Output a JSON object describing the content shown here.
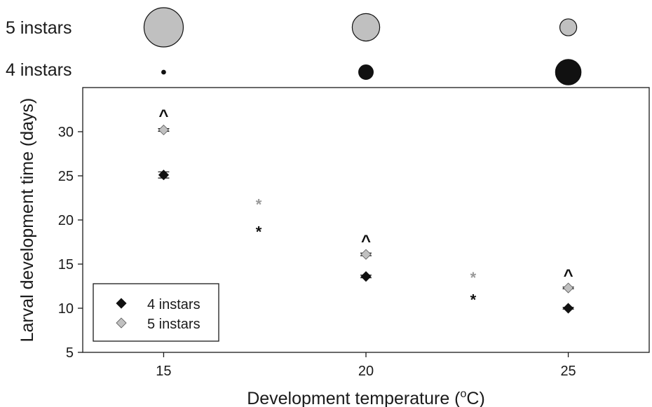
{
  "chart_data": {
    "type": "scatter",
    "title": "",
    "xlabel": "Development temperature (",
    "xlabel_sup": "o",
    "xlabel_suffix": "C)",
    "ylabel": "Larval development time (days)",
    "xlim": [
      13,
      27
    ],
    "ylim": [
      5,
      35
    ],
    "xticks": [
      15,
      20,
      25
    ],
    "yticks": [
      5,
      10,
      15,
      20,
      25,
      30
    ],
    "grid": false,
    "legend_position": "bottom-left",
    "series": [
      {
        "name": "4 instars",
        "marker": "diamond",
        "color": "#111111",
        "x": [
          15,
          20,
          25
        ],
        "y": [
          25.1,
          13.6,
          10.0
        ],
        "err": [
          0.35,
          0.15,
          0.1
        ]
      },
      {
        "name": "5 instars",
        "marker": "diamond",
        "color": "#c0c0c0",
        "x": [
          15,
          20,
          25
        ],
        "y": [
          30.2,
          16.1,
          12.3
        ],
        "err": [
          0.15,
          0.15,
          0.1
        ]
      }
    ],
    "annotations": [
      {
        "text": "^",
        "x": 15,
        "y": 32.3,
        "color": "#111111"
      },
      {
        "text": "^",
        "x": 20,
        "y": 18.1,
        "color": "#111111"
      },
      {
        "text": "^",
        "x": 25,
        "y": 14.2,
        "color": "#111111"
      },
      {
        "text": "*",
        "x": 17.35,
        "y": 22.1,
        "color": "#9a9a9a"
      },
      {
        "text": "*",
        "x": 17.35,
        "y": 19.0,
        "color": "#111111"
      },
      {
        "text": "*",
        "x": 22.65,
        "y": 13.8,
        "color": "#9a9a9a"
      },
      {
        "text": "*",
        "x": 22.65,
        "y": 11.3,
        "color": "#111111"
      }
    ],
    "proportion_rows": [
      {
        "label": "5 instars",
        "fill": "#c0c0c0",
        "x": [
          15,
          20,
          25
        ],
        "relative_size": [
          1.0,
          0.7,
          0.43
        ]
      },
      {
        "label": "4 instars",
        "fill": "#111111",
        "x": [
          15,
          20,
          25
        ],
        "relative_size": [
          0.1,
          0.37,
          0.65
        ]
      }
    ]
  }
}
